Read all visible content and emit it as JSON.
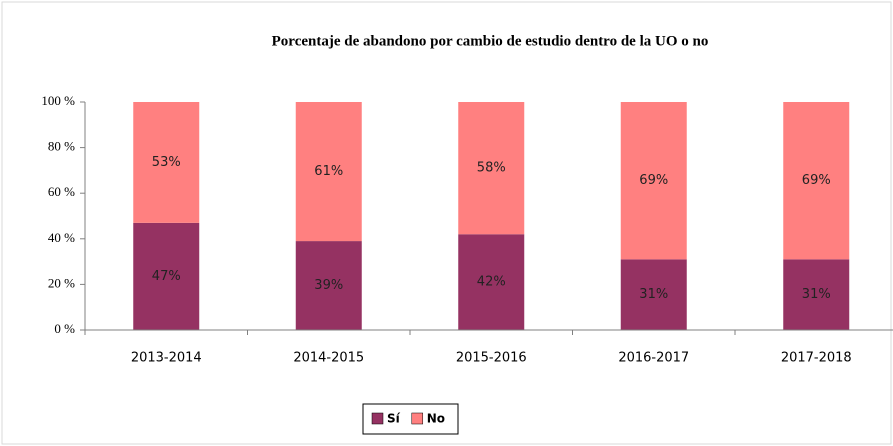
{
  "chart_data": {
    "type": "bar",
    "stacked": true,
    "title": "Porcentaje de abandono por cambio de estudio dentro de la UO o no",
    "categories": [
      "2013-2014",
      "2014-2015",
      "2015-2016",
      "2016-2017",
      "2017-2018"
    ],
    "series": [
      {
        "name": "Sí",
        "color": "#953262",
        "values": [
          47,
          39,
          42,
          31,
          31
        ],
        "value_labels": [
          "47%",
          "39%",
          "42%",
          "31%",
          "31%"
        ]
      },
      {
        "name": "No",
        "color": "#ff8080",
        "values": [
          53,
          61,
          58,
          69,
          69
        ],
        "value_labels": [
          "53%",
          "61%",
          "58%",
          "69%",
          "69%"
        ]
      }
    ],
    "ylim": [
      0,
      100
    ],
    "yticks": [
      {
        "value": 0,
        "label": "0 %"
      },
      {
        "value": 20,
        "label": "20 %"
      },
      {
        "value": 40,
        "label": "40 %"
      },
      {
        "value": 60,
        "label": "60 %"
      },
      {
        "value": 80,
        "label": "80 %"
      },
      {
        "value": 100,
        "label": "100 %"
      }
    ],
    "grid": false,
    "legend": "bottom"
  }
}
